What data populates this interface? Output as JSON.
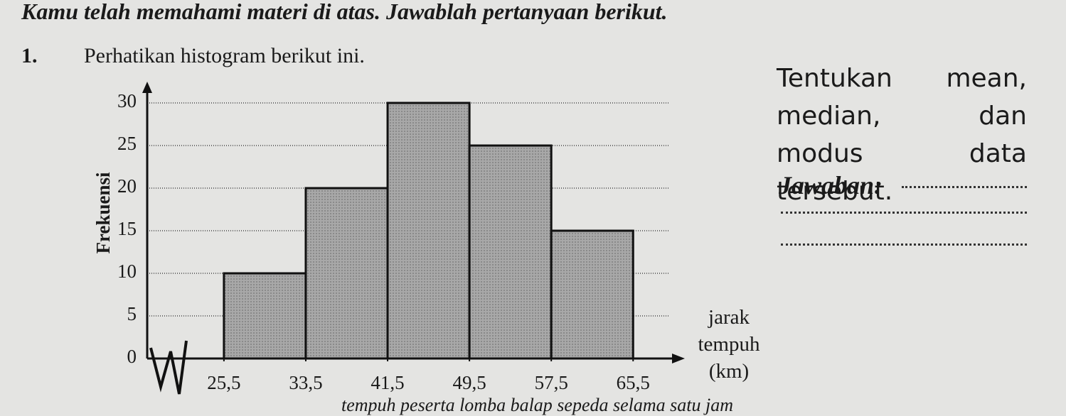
{
  "heading": "Kamu telah memahami materi di atas. Jawablah pertanyaan berikut.",
  "question": {
    "number": "1.",
    "text": "Perhatikan histogram berikut ini.",
    "task": "Tentukan mean, median, dan modus data tersebut.",
    "answer_label": "Jawaban:"
  },
  "chart_data": {
    "type": "histogram",
    "ylabel": "Frekuensi",
    "xlabel": "jarak tempuh (km)",
    "bins": [
      25.5,
      33.5,
      41.5,
      49.5,
      57.5,
      65.5
    ],
    "values": [
      10,
      20,
      30,
      25,
      15
    ],
    "color": "#a3a3a3",
    "xlim": [
      18,
      70
    ],
    "ylim": [
      0,
      32
    ],
    "xticks": [
      {
        "value": 25.5,
        "label": "25,5"
      },
      {
        "value": 33.5,
        "label": "33,5"
      },
      {
        "value": 41.5,
        "label": "41,5"
      },
      {
        "value": 49.5,
        "label": "49,5"
      },
      {
        "value": 57.5,
        "label": "57,5"
      },
      {
        "value": 65.5,
        "label": "65,5"
      }
    ],
    "yticks": [
      0,
      5,
      10,
      15,
      20,
      25,
      30
    ],
    "grid": true
  },
  "caption": "tempuh peserta lomba balap sepeda selama satu jam"
}
